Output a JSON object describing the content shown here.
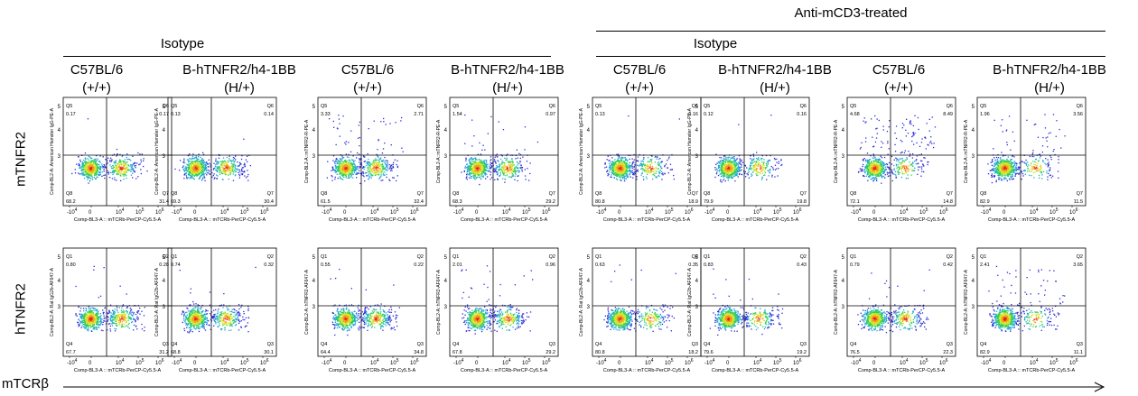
{
  "header": {
    "treated_label": "Anti-mCD3-treated",
    "isotype_left": "Isotype",
    "isotype_right": "Isotype",
    "columns": [
      {
        "strain": "C57BL/6",
        "genotype": "(+/+)"
      },
      {
        "strain": "B-hTNFR2/h4-1BB",
        "genotype": "(H/+)"
      },
      {
        "strain": "C57BL/6",
        "genotype": "(+/+)"
      },
      {
        "strain": "B-hTNFR2/h4-1BB",
        "genotype": "(H/+)"
      },
      {
        "strain": "C57BL/6",
        "genotype": "(+/+)"
      },
      {
        "strain": "B-hTNFR2/h4-1BB",
        "genotype": "(H/+)"
      },
      {
        "strain": "C57BL/6",
        "genotype": "(+/+)"
      },
      {
        "strain": "B-hTNFR2/h4-1BB",
        "genotype": "(H/+)"
      }
    ]
  },
  "row_labels": [
    "mTNFR2",
    "hTNFR2"
  ],
  "x_axis_label": "mTCRβ",
  "plot_xlabel": "Comp-BL3-A :: mTCRb-PerCP-Cy5.5-A",
  "tick_labels": {
    "neg": "-10",
    "zero": "0",
    "ten": "10",
    "exps": [
      "4",
      "5",
      "6"
    ],
    "y": [
      "3",
      "4",
      "5"
    ]
  },
  "chart_data": {
    "type": "scatter",
    "x_scale": "biexponential",
    "y_scale": "biexponential",
    "rows": [
      {
        "marker": "mTNFR2",
        "quadrant_names": [
          "Q5",
          "Q6",
          "Q8",
          "Q7"
        ],
        "panels": [
          {
            "ylabel": "Comp-BL2-A::American Hamster IgG-PE-A",
            "values": [
              0.17,
              0.17,
              68.2,
              31.4
            ]
          },
          {
            "ylabel": "Comp-BL2-A::American Hamster IgG-PE-A",
            "values": [
              0.13,
              0.14,
              69.3,
              30.4
            ]
          },
          {
            "ylabel": "Comp-BL2-A::mTNFR2-R-PE-A",
            "values": [
              3.33,
              2.71,
              61.5,
              32.4
            ]
          },
          {
            "ylabel": "Comp-BL2-A::mTNFR2-R-PE-A",
            "values": [
              1.54,
              0.97,
              68.3,
              29.2
            ]
          },
          {
            "ylabel": "Comp-BL2-A::American Hamster IgG-PE-A",
            "values": [
              0.13,
              0.16,
              80.8,
              18.9
            ]
          },
          {
            "ylabel": "Comp-BL2-A::American Hamster IgG-PE-A",
            "values": [
              0.12,
              0.16,
              79.9,
              19.8
            ]
          },
          {
            "ylabel": "Comp-BL2-A::mTNFR2-R-PE-A",
            "values": [
              4.68,
              8.49,
              72.1,
              14.8
            ]
          },
          {
            "ylabel": "Comp-BL2-A::mTNFR2-R-PE-A",
            "values": [
              1.96,
              3.56,
              82.9,
              11.5
            ]
          }
        ]
      },
      {
        "marker": "hTNFR2",
        "quadrant_names": [
          "Q1",
          "Q2",
          "Q4",
          "Q3"
        ],
        "panels": [
          {
            "ylabel": "Comp-BL2-A::Rat IgG2b-AF647-A",
            "values": [
              0.8,
              0.28,
              67.7,
              31.2
            ]
          },
          {
            "ylabel": "Comp-BL2-A::Rat IgG2b-AF647-A",
            "values": [
              0.74,
              0.32,
              68.8,
              30.1
            ]
          },
          {
            "ylabel": "Comp-BL2-A::hTNFR2-AF647-A",
            "values": [
              0.55,
              0.22,
              64.4,
              34.8
            ]
          },
          {
            "ylabel": "Comp-BL2-A::hTNFR2-AF647-A",
            "values": [
              2.01,
              0.96,
              67.8,
              29.2
            ]
          },
          {
            "ylabel": "Comp-BL2-A::Rat IgG2b-AF647-A",
            "values": [
              0.63,
              0.35,
              80.8,
              18.2
            ]
          },
          {
            "ylabel": "Comp-BL2-A::Rat IgG2b-AF647-A",
            "values": [
              0.83,
              0.43,
              79.6,
              19.2
            ]
          },
          {
            "ylabel": "Comp-BL2-A::hTNFR2-AF647-A",
            "values": [
              0.79,
              0.42,
              76.5,
              22.3
            ]
          },
          {
            "ylabel": "Comp-BL2-A::hTNFR2-AF647-A",
            "values": [
              2.41,
              3.65,
              82.9,
              11.1
            ]
          }
        ]
      }
    ]
  }
}
